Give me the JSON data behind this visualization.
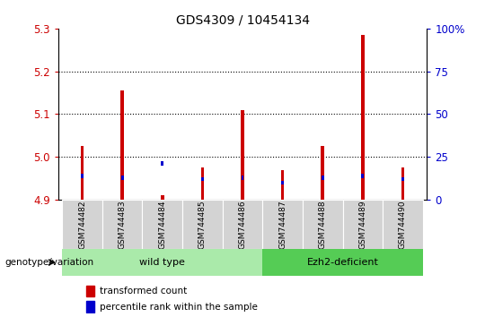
{
  "title": "GDS4309 / 10454134",
  "samples": [
    "GSM744482",
    "GSM744483",
    "GSM744484",
    "GSM744485",
    "GSM744486",
    "GSM744487",
    "GSM744488",
    "GSM744489",
    "GSM744490"
  ],
  "transformed_count": [
    5.025,
    5.155,
    4.91,
    4.975,
    5.11,
    4.97,
    5.025,
    5.285,
    4.975
  ],
  "percentile_rank_pct": [
    14,
    13,
    21,
    12,
    13,
    10,
    13,
    14,
    12
  ],
  "ylim_left": [
    4.9,
    5.3
  ],
  "ylim_right": [
    0,
    100
  ],
  "yticks_left": [
    4.9,
    5.0,
    5.1,
    5.2,
    5.3
  ],
  "yticks_right": [
    0,
    25,
    50,
    75,
    100
  ],
  "wt_indices": [
    0,
    1,
    2,
    3,
    4
  ],
  "ez_indices": [
    5,
    6,
    7,
    8
  ],
  "bar_width": 0.08,
  "blue_bar_width": 0.06,
  "red_color": "#cc0000",
  "blue_color": "#0000cc",
  "base_value": 4.9,
  "wt_color": "#aaeaaa",
  "ez_color": "#55cc55",
  "grey_box_color": "#d3d3d3",
  "group_label": "genotype/variation",
  "grid_linestyle": "dotted",
  "grid_color": "#000000",
  "tick_color_left": "#cc0000",
  "tick_color_right": "#0000cc"
}
